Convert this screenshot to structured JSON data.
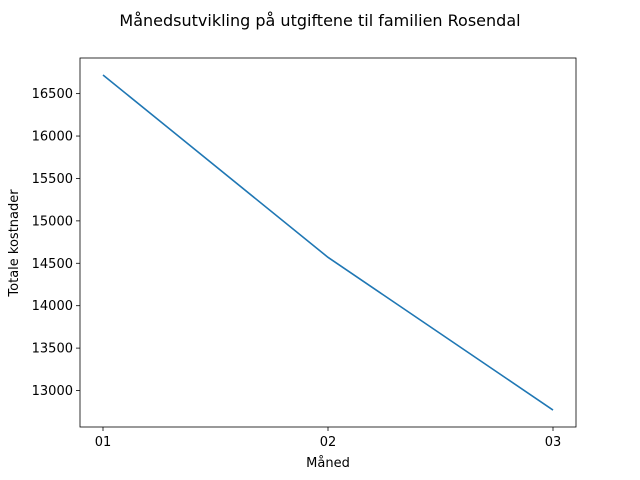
{
  "chart_data": {
    "type": "line",
    "title": "Månedsutvikling på utgiftene til familien Rosendal",
    "xlabel": "Måned",
    "ylabel": "Totale kostnader",
    "categories": [
      "01",
      "02",
      "03"
    ],
    "series": [
      {
        "values": [
          16720,
          14570,
          12770
        ],
        "color": "#1f77b4"
      }
    ],
    "yticks": [
      13000,
      13500,
      14000,
      14500,
      15000,
      15500,
      16000,
      16500
    ],
    "ylim": [
      12570,
      16920
    ],
    "grid": false,
    "legend": "none"
  }
}
